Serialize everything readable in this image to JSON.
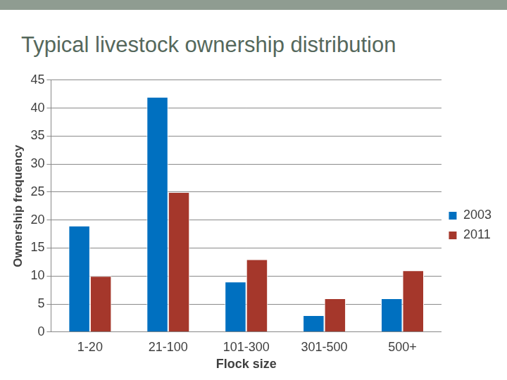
{
  "chart_data": {
    "type": "bar",
    "title": "Typical livestock ownership distribution",
    "x_label": "Flock size",
    "y_label": "Ownership frequency",
    "categories": [
      "1-20",
      "21-100",
      "101-300",
      "301-500",
      "500+"
    ],
    "series": [
      {
        "name": "2003",
        "color": "#0070c0",
        "values": [
          19,
          42,
          9,
          3,
          6
        ]
      },
      {
        "name": "2011",
        "color": "#a5372b",
        "values": [
          10,
          25,
          13,
          6,
          11
        ]
      }
    ],
    "ylim": [
      0,
      45
    ],
    "yticks": [
      0,
      5,
      10,
      15,
      20,
      25,
      30,
      35,
      40,
      45
    ],
    "grid": true,
    "legend": "right"
  }
}
